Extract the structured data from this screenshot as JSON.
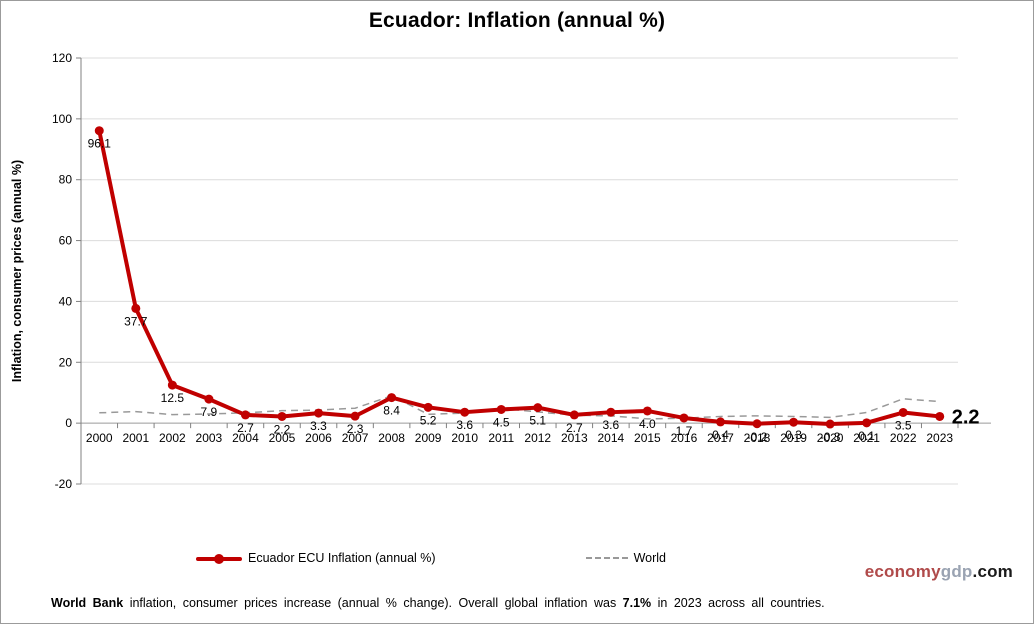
{
  "header": {
    "title": "Ecuador: Inflation (annual %)"
  },
  "chart_data": {
    "type": "line",
    "title": "Ecuador: Inflation (annual %)",
    "xlabel": "",
    "ylabel": "Inflation, consumer prices (annual %)",
    "ylim": [
      -20,
      120
    ],
    "yticks": [
      -20,
      0,
      20,
      40,
      60,
      80,
      100,
      120
    ],
    "grid": "horizontal",
    "legend_position": "bottom",
    "categories": [
      "2000",
      "2001",
      "2002",
      "2003",
      "2004",
      "2005",
      "2006",
      "2007",
      "2008",
      "2009",
      "2010",
      "2011",
      "2012",
      "2013",
      "2014",
      "2015",
      "2016",
      "2017",
      "2018",
      "2019",
      "2020",
      "2021",
      "2022",
      "2023"
    ],
    "series": [
      {
        "name": "Ecuador ECU Inflation (annual %)",
        "color": "#c00000",
        "style": "solid",
        "values": [
          96.1,
          37.7,
          12.5,
          7.9,
          2.7,
          2.2,
          3.3,
          2.3,
          8.4,
          5.2,
          3.6,
          4.5,
          5.1,
          2.7,
          3.6,
          4.0,
          1.7,
          0.4,
          -0.2,
          0.3,
          -0.3,
          0.1,
          3.5,
          2.2
        ],
        "point_labels": [
          "96.1",
          "37.7",
          "12.5",
          "7.9",
          "2.7",
          "2.2",
          "3.3",
          "2.3",
          "8.4",
          "5.2",
          "3.6",
          "4.5",
          "5.1",
          "2.7",
          "3.6",
          "4.0",
          "1.7",
          "0.4",
          "-0.2",
          "0.3",
          "-0.3",
          "0.1",
          "3.5",
          ""
        ]
      },
      {
        "name": "World",
        "color": "#999999",
        "style": "dashed",
        "values": [
          3.4,
          3.8,
          2.8,
          3.0,
          3.4,
          4.1,
          4.3,
          4.9,
          9.0,
          2.9,
          3.3,
          4.8,
          3.7,
          2.6,
          2.4,
          1.4,
          1.6,
          2.2,
          2.4,
          2.2,
          1.9,
          3.5,
          8.0,
          7.1
        ]
      }
    ],
    "last_value_callout": "2.2"
  },
  "legend": {
    "items": [
      {
        "label": "Ecuador ECU Inflation (annual %)"
      },
      {
        "label": "World"
      }
    ]
  },
  "watermark": {
    "economy": "economy",
    "gdp": "gdp",
    "com": ".com"
  },
  "footer": {
    "part1_bold": "World Bank",
    "part2": " inflation, consumer prices increase (annual % change).  Overall global inflation was ",
    "part3_bold": "7.1%",
    "part4": " in 2023 across all countries."
  },
  "colors": {
    "accent_line": "#c00000",
    "world_line": "#999999",
    "gridline": "#dcdcdc",
    "axis": "#808080",
    "watermark_economy": "#b04a4a",
    "watermark_gdp": "#9aa3b2"
  }
}
